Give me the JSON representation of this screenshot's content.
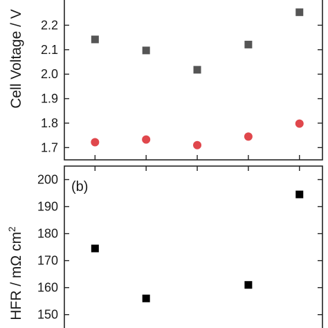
{
  "chart_data": [
    {
      "type": "scatter",
      "panel_label": "",
      "ylabel_parts": [
        "Cell Voltage / V"
      ],
      "ylim": [
        1.65,
        2.32
      ],
      "yticks": [
        1.7,
        1.8,
        1.9,
        2.0,
        2.1,
        2.2
      ],
      "ytick_labels": [
        "1.7",
        "1.8",
        "1.9",
        "2.0",
        "2.1",
        "2.2"
      ],
      "x": [
        1,
        2,
        3,
        4,
        5
      ],
      "xlim": [
        0.4,
        5.45
      ],
      "series": [
        {
          "marker": "square",
          "color": "#555555",
          "values": [
            2.142,
            2.097,
            2.018,
            2.121,
            2.253
          ]
        },
        {
          "marker": "circle",
          "color": "#e0474c",
          "values": [
            1.722,
            1.733,
            1.71,
            1.745,
            1.798
          ]
        }
      ]
    },
    {
      "type": "scatter",
      "panel_label": "(b)",
      "ylabel_parts": [
        "HFR / mΩ cm",
        "2"
      ],
      "ylim": [
        143,
        205
      ],
      "yticks": [
        150,
        160,
        170,
        180,
        190,
        200
      ],
      "ytick_labels": [
        "150",
        "160",
        "170",
        "180",
        "190",
        "200"
      ],
      "x": [
        1,
        2,
        4,
        5
      ],
      "xlim": [
        0.4,
        5.45
      ],
      "series": [
        {
          "marker": "square",
          "color": "#000000",
          "values": [
            174.5,
            156,
            161,
            194.5
          ]
        }
      ]
    }
  ]
}
